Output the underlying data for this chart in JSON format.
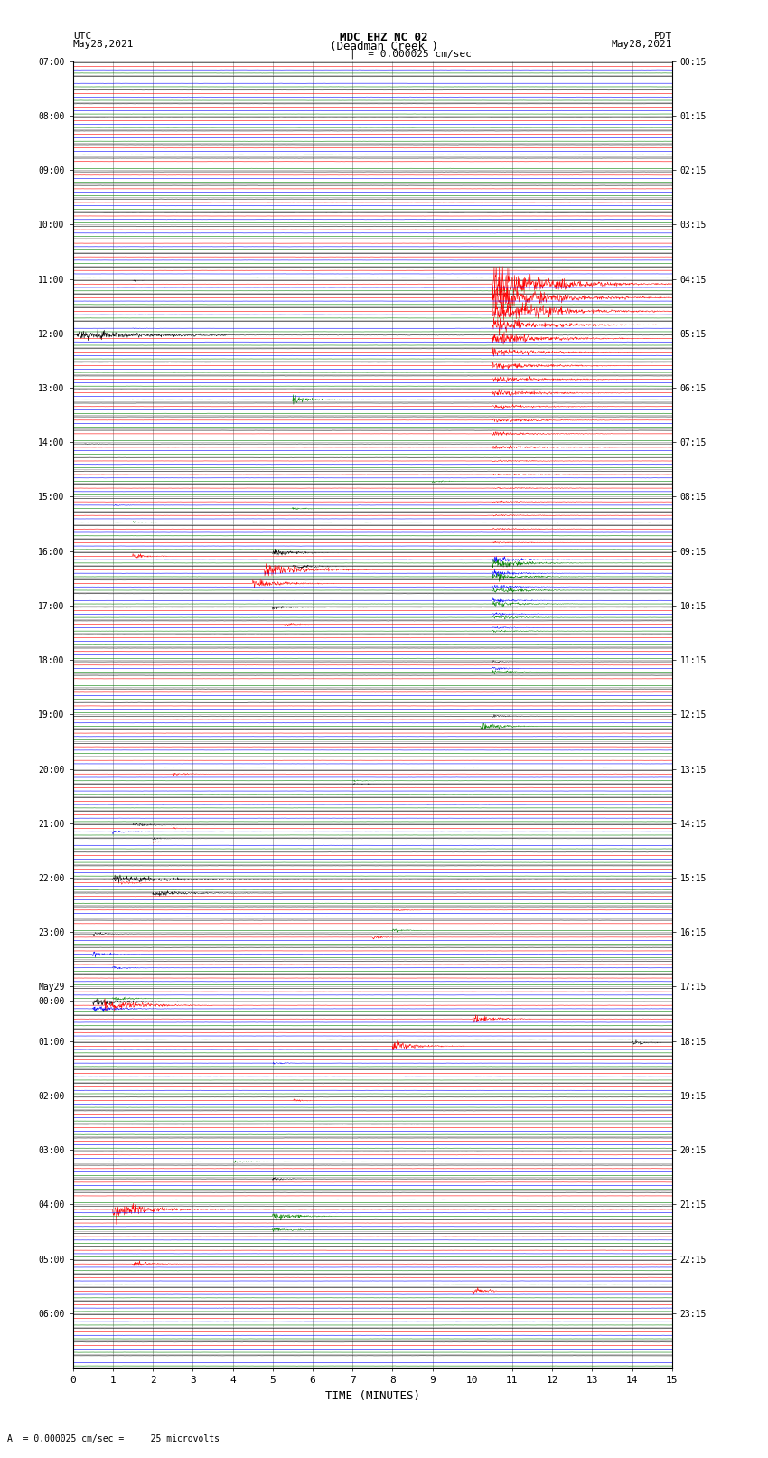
{
  "title_line1": "MDC EHZ NC 02",
  "title_line2": "(Deadman Creek )",
  "title_line3": "I = 0.000025 cm/sec",
  "label_utc": "UTC",
  "label_pdt": "PDT",
  "date_left": "May28,2021",
  "date_right": "May28,2021",
  "xlabel": "TIME (MINUTES)",
  "footer_text": "= 0.000025 cm/sec =     25 microvolts",
  "background_color": "#ffffff",
  "trace_colors": [
    "black",
    "red",
    "blue",
    "green"
  ],
  "total_rows": 96,
  "noise_base": 0.018,
  "utc_hour_labels": {
    "0": "07:00",
    "4": "08:00",
    "8": "09:00",
    "12": "10:00",
    "16": "11:00",
    "20": "12:00",
    "24": "13:00",
    "28": "14:00",
    "32": "15:00",
    "36": "16:00",
    "40": "17:00",
    "44": "18:00",
    "48": "19:00",
    "52": "20:00",
    "56": "21:00",
    "60": "22:00",
    "64": "23:00",
    "68": "May29",
    "69": "00:00",
    "72": "01:00",
    "76": "02:00",
    "80": "03:00",
    "84": "04:00",
    "88": "05:00",
    "92": "06:00"
  },
  "pdt_hour_labels": {
    "0": "00:15",
    "4": "01:15",
    "8": "02:15",
    "12": "03:15",
    "16": "04:15",
    "20": "05:15",
    "24": "06:15",
    "28": "07:15",
    "32": "08:15",
    "36": "09:15",
    "40": "10:15",
    "44": "11:15",
    "48": "12:15",
    "52": "13:15",
    "56": "14:15",
    "60": "15:15",
    "64": "16:15",
    "68": "17:15",
    "72": "18:15",
    "76": "19:15",
    "80": "20:15",
    "84": "21:15",
    "88": "22:15",
    "92": "23:15"
  }
}
